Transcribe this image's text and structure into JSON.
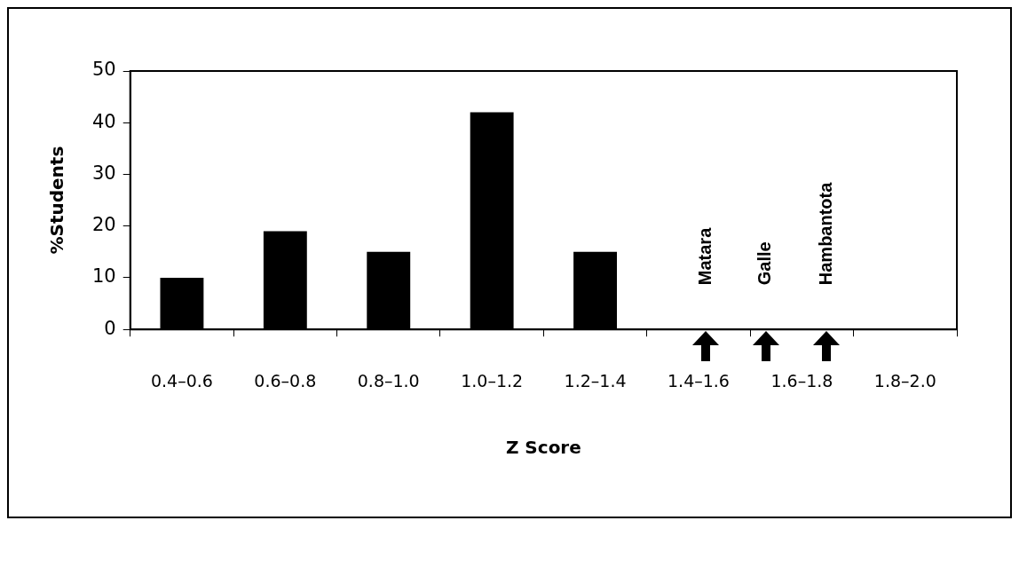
{
  "chart_data": {
    "type": "bar",
    "xlabel": "Z Score",
    "ylabel": "%Students",
    "categories": [
      "0.4–0.6",
      "0.6–0.8",
      "0.8–1.0",
      "1.0–1.2",
      "1.2–1.4",
      "1.4–1.6",
      "1.6–1.8",
      "1.8–2.0"
    ],
    "values": [
      10,
      19,
      15,
      42,
      15,
      0,
      0,
      0
    ],
    "color": "#000000",
    "ylim": [
      0,
      50
    ],
    "yticks": [
      0,
      10,
      20,
      30,
      40,
      50
    ],
    "grid": false,
    "legend": false,
    "annotations": [
      "Matara",
      "Galle",
      "Hambantota"
    ]
  }
}
